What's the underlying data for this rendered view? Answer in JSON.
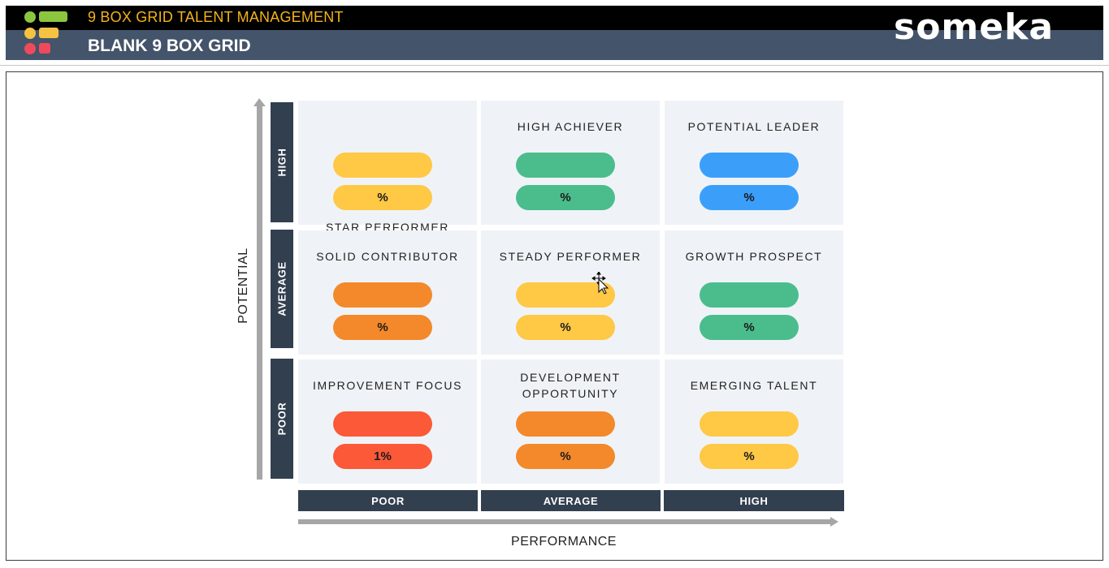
{
  "header": {
    "app_title": "9 BOX GRID TALENT MANAGEMENT",
    "page_title": "BLANK 9 BOX GRID",
    "brand": "someka"
  },
  "axes": {
    "y_label": "POTENTIAL",
    "x_label": "PERFORMANCE"
  },
  "rows": {
    "high": "HIGH",
    "average": "AVERAGE",
    "poor": "POOR"
  },
  "columns": {
    "poor": "POOR",
    "average": "AVERAGE",
    "high": "HIGH"
  },
  "colors": {
    "yellow": "#ffc845",
    "green": "#4bbd8c",
    "blue": "#3b9ffa",
    "orange": "#f3892a",
    "red": "#fb5937",
    "header_dark": "#323f4f"
  },
  "boxes": [
    {
      "title": "STAR PERFORMER",
      "color": "#ffc845",
      "count": "",
      "pct": "%"
    },
    {
      "title": "HIGH ACHIEVER",
      "color": "#4bbd8c",
      "count": "",
      "pct": "%"
    },
    {
      "title": "POTENTIAL LEADER",
      "color": "#3b9ffa",
      "count": "",
      "pct": "%"
    },
    {
      "title": "SOLID CONTRIBUTOR",
      "color": "#f3892a",
      "count": "",
      "pct": "%"
    },
    {
      "title": "STEADY PERFORMER",
      "color": "#ffc845",
      "count": "",
      "pct": "%"
    },
    {
      "title": "GROWTH PROSPECT",
      "color": "#4bbd8c",
      "count": "",
      "pct": "%"
    },
    {
      "title": "IMPROVEMENT FOCUS",
      "color": "#fb5937",
      "count": "",
      "pct": "1%"
    },
    {
      "title_line1": "DEVELOPMENT",
      "title_line2": "OPPORTUNITY",
      "color": "#f3892a",
      "count": "",
      "pct": "%"
    },
    {
      "title": "EMERGING TALENT",
      "color": "#ffc845",
      "count": "",
      "pct": "%"
    }
  ]
}
